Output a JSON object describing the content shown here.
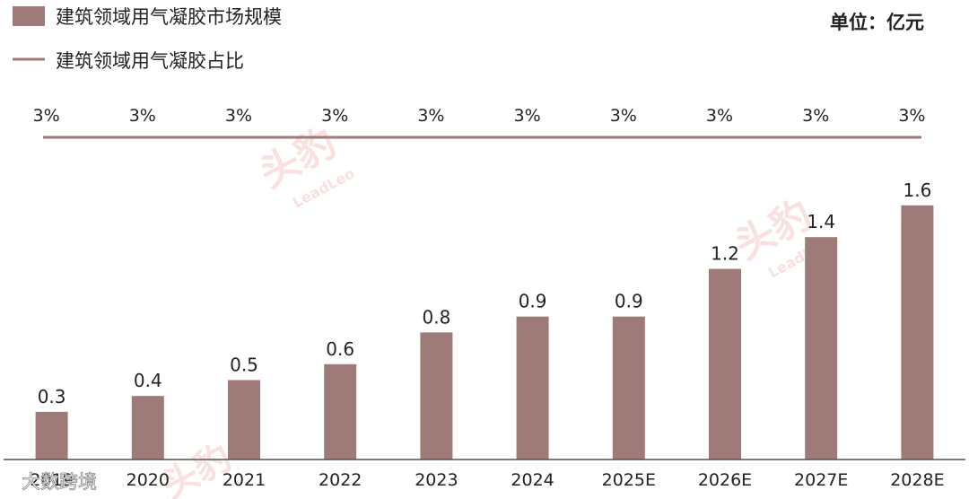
{
  "colors": {
    "bar": "#9e7b79",
    "line": "#9e7b79",
    "axis": "#555555",
    "text": "#222222"
  },
  "chart_data": {
    "type": "bar",
    "categories": [
      "2019",
      "2020",
      "2021",
      "2022",
      "2023",
      "2024",
      "2025E",
      "2026E",
      "2027E",
      "2028E"
    ],
    "series": [
      {
        "name": "建筑领域用气凝胶市场规模",
        "type": "bar",
        "values": [
          0.3,
          0.4,
          0.5,
          0.6,
          0.8,
          0.9,
          0.9,
          1.2,
          1.4,
          1.6
        ],
        "labels": [
          "0.3",
          "0.4",
          "0.5",
          "0.6",
          "0.8",
          "0.9",
          "0.9",
          "1.2",
          "1.4",
          "1.6"
        ]
      },
      {
        "name": "建筑领域用气凝胶占比",
        "type": "line",
        "values": [
          3,
          3,
          3,
          3,
          3,
          3,
          3,
          3,
          3,
          3
        ],
        "labels": [
          "3%",
          "3%",
          "3%",
          "3%",
          "3%",
          "3%",
          "3%",
          "3%",
          "3%",
          "3%"
        ]
      }
    ],
    "unit_label": "单位：亿元",
    "legend_position": "top-left",
    "grid": false
  },
  "watermark": {
    "brand": "头豹",
    "brand_latin": "LeadLeo",
    "source": "大数跨境"
  }
}
